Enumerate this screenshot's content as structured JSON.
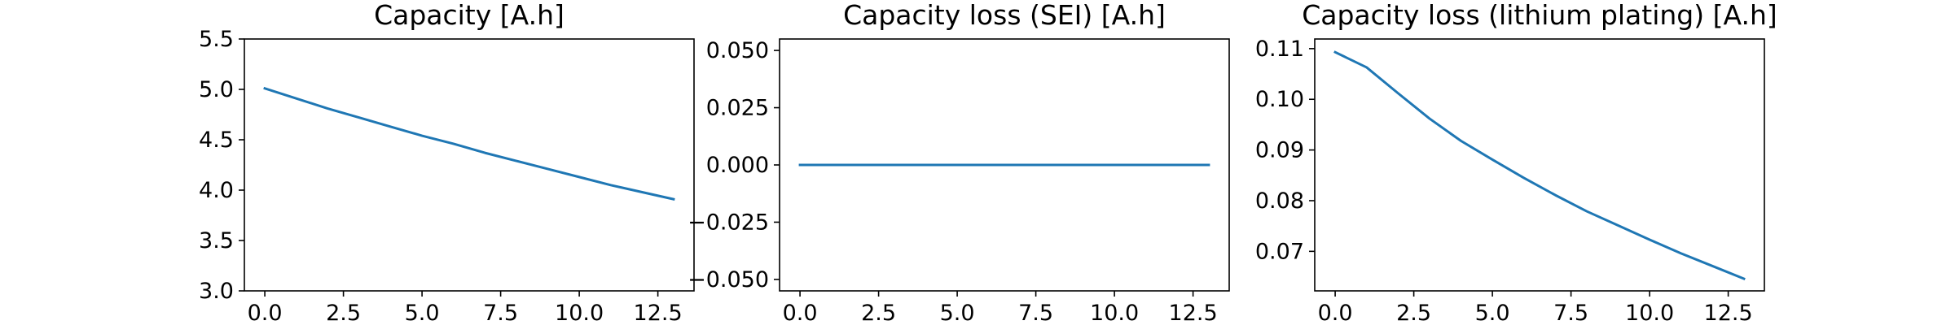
{
  "chart_data": [
    {
      "type": "line",
      "title": "Capacity [A.h]",
      "xlim": [
        -0.65,
        13.65
      ],
      "ylim": [
        3.0,
        5.5
      ],
      "xticks": [
        0,
        2.5,
        5,
        7.5,
        10,
        12.5
      ],
      "xtick_labels": [
        "0.0",
        "2.5",
        "5.0",
        "7.5",
        "10.0",
        "12.5"
      ],
      "yticks": [
        3.0,
        3.5,
        4.0,
        4.5,
        5.0,
        5.5
      ],
      "ytick_labels": [
        "3.0",
        "3.5",
        "4.0",
        "4.5",
        "5.0",
        "5.5"
      ],
      "series": [
        {
          "color": "#1f77b4",
          "x": [
            0,
            1,
            2,
            3,
            4,
            5,
            6,
            7,
            8,
            9,
            10,
            11,
            12,
            13
          ],
          "y": [
            5.01,
            4.91,
            4.81,
            4.72,
            4.63,
            4.54,
            4.46,
            4.37,
            4.29,
            4.21,
            4.13,
            4.05,
            3.98,
            3.91
          ]
        }
      ]
    },
    {
      "type": "line",
      "title": "Capacity loss (SEI) [A.h]",
      "xlim": [
        -0.65,
        13.65
      ],
      "ylim": [
        -0.055,
        0.055
      ],
      "xticks": [
        0,
        2.5,
        5,
        7.5,
        10,
        12.5
      ],
      "xtick_labels": [
        "0.0",
        "2.5",
        "5.0",
        "7.5",
        "10.0",
        "12.5"
      ],
      "yticks": [
        -0.05,
        -0.025,
        0.0,
        0.025,
        0.05
      ],
      "ytick_labels": [
        "−0.050",
        "−0.025",
        "0.000",
        "0.025",
        "0.050"
      ],
      "series": [
        {
          "color": "#1f77b4",
          "x": [
            0,
            1,
            2,
            3,
            4,
            5,
            6,
            7,
            8,
            9,
            10,
            11,
            12,
            13
          ],
          "y": [
            0,
            0,
            0,
            0,
            0,
            0,
            0,
            0,
            0,
            0,
            0,
            0,
            0,
            0
          ]
        }
      ]
    },
    {
      "type": "line",
      "title": "Capacity loss (lithium plating) [A.h]",
      "xlim": [
        -0.65,
        13.65
      ],
      "ylim": [
        0.0622,
        0.1119
      ],
      "xticks": [
        0,
        2.5,
        5,
        7.5,
        10,
        12.5
      ],
      "xtick_labels": [
        "0.0",
        "2.5",
        "5.0",
        "7.5",
        "10.0",
        "12.5"
      ],
      "yticks": [
        0.07,
        0.08,
        0.09,
        0.1,
        0.11
      ],
      "ytick_labels": [
        "0.07",
        "0.08",
        "0.09",
        "0.10",
        "0.11"
      ],
      "series": [
        {
          "color": "#1f77b4",
          "x": [
            0,
            1,
            2,
            3,
            4,
            5,
            6,
            7,
            8,
            9,
            10,
            11,
            12,
            13
          ],
          "y": [
            0.1093,
            0.1063,
            0.1012,
            0.0962,
            0.0918,
            0.0881,
            0.0845,
            0.0811,
            0.0779,
            0.0751,
            0.0723,
            0.0696,
            0.0671,
            0.0646
          ]
        }
      ]
    }
  ]
}
